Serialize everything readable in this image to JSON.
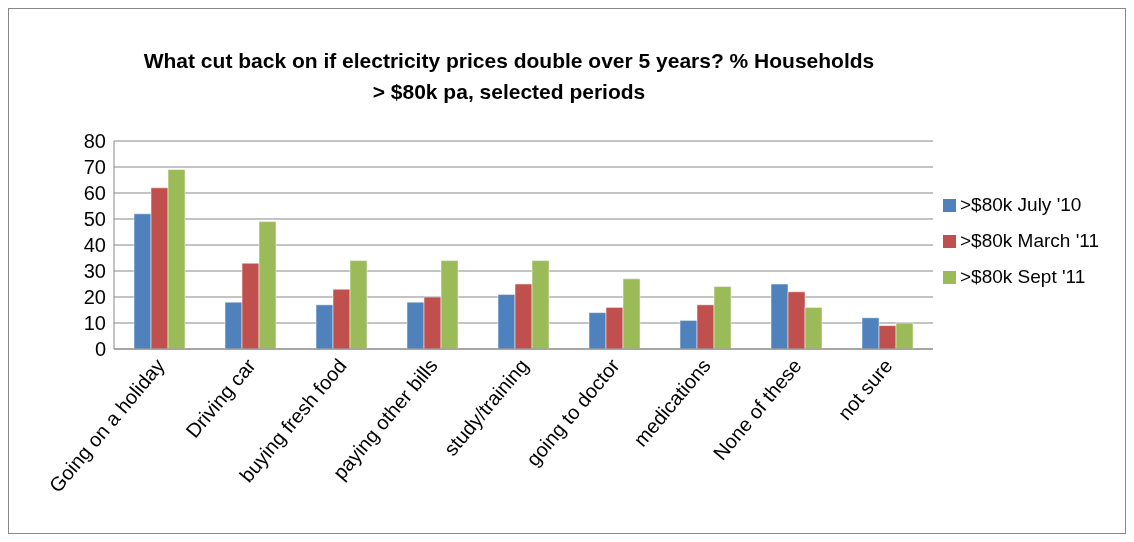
{
  "chart_data": {
    "type": "bar",
    "title": "What cut back on if electricity prices double over 5 years? % Households > $80k pa, selected periods",
    "categories": [
      "Going on a holiday",
      "Driving car",
      "buying fresh food",
      "paying other bills",
      "study/training",
      "going to doctor",
      "medications",
      "None of these",
      "not sure"
    ],
    "series": [
      {
        "name": ">$80k July '10",
        "color": "#4f81bd",
        "values": [
          52,
          18,
          17,
          18,
          21,
          14,
          11,
          25,
          12
        ]
      },
      {
        "name": ">$80k March '11",
        "color": "#c0504d",
        "values": [
          62,
          33,
          23,
          20,
          25,
          16,
          17,
          22,
          9
        ]
      },
      {
        "name": ">$80k Sept '11",
        "color": "#9bbb59",
        "values": [
          69,
          49,
          34,
          34,
          34,
          27,
          24,
          16,
          10
        ]
      }
    ],
    "ylim": [
      0,
      80
    ],
    "yticks": [
      0,
      10,
      20,
      30,
      40,
      50,
      60,
      70,
      80
    ],
    "grid": "y",
    "legend": "right"
  }
}
